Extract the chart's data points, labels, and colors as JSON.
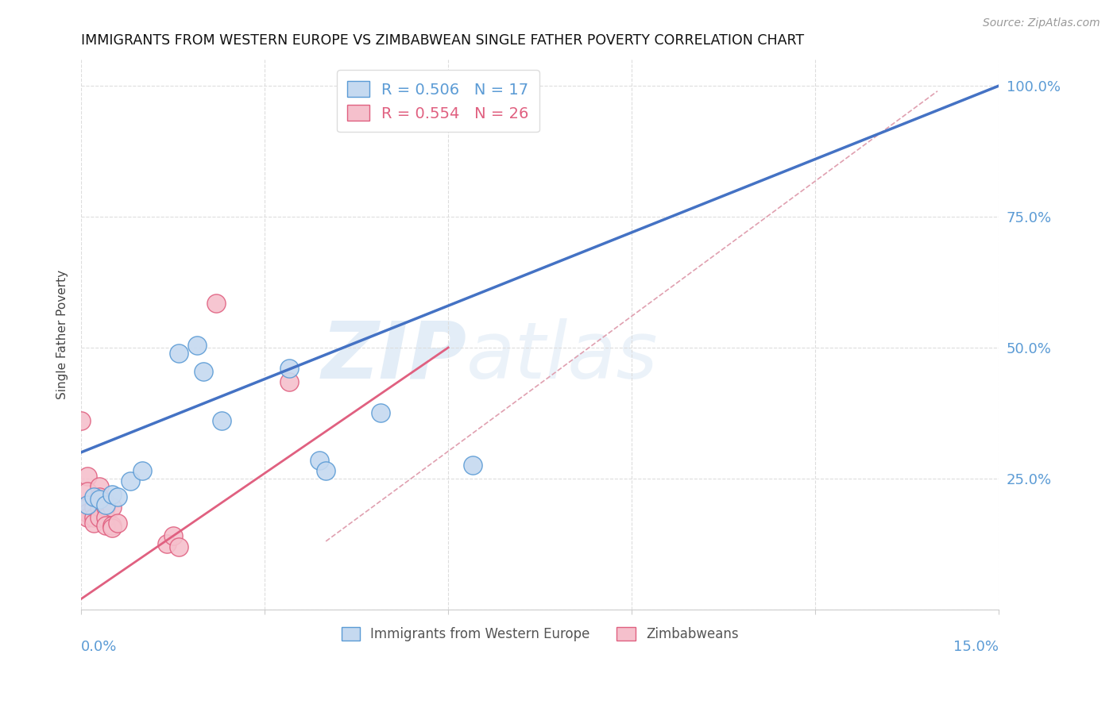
{
  "title": "IMMIGRANTS FROM WESTERN EUROPE VS ZIMBABWEAN SINGLE FATHER POVERTY CORRELATION CHART",
  "source": "Source: ZipAtlas.com",
  "ylabel": "Single Father Poverty",
  "legend_blue_r": "R = 0.506",
  "legend_blue_n": "N = 17",
  "legend_pink_r": "R = 0.554",
  "legend_pink_n": "N = 26",
  "watermark": "ZIPatlas",
  "blue_fill": "#c5d9f0",
  "pink_fill": "#f5c0cc",
  "blue_edge": "#5b9bd5",
  "pink_edge": "#e06080",
  "blue_line_color": "#4472c4",
  "pink_line_color": "#e06080",
  "ref_line_color": "#e0a0b0",
  "blue_scatter": [
    [
      0.001,
      0.2
    ],
    [
      0.002,
      0.215
    ],
    [
      0.003,
      0.21
    ],
    [
      0.004,
      0.2
    ],
    [
      0.005,
      0.22
    ],
    [
      0.006,
      0.215
    ],
    [
      0.008,
      0.245
    ],
    [
      0.01,
      0.265
    ],
    [
      0.016,
      0.49
    ],
    [
      0.019,
      0.505
    ],
    [
      0.02,
      0.455
    ],
    [
      0.023,
      0.36
    ],
    [
      0.034,
      0.46
    ],
    [
      0.039,
      0.285
    ],
    [
      0.04,
      0.265
    ],
    [
      0.049,
      0.375
    ],
    [
      0.064,
      0.275
    ]
  ],
  "pink_scatter": [
    [
      0.0,
      0.36
    ],
    [
      0.001,
      0.255
    ],
    [
      0.001,
      0.225
    ],
    [
      0.001,
      0.195
    ],
    [
      0.001,
      0.185
    ],
    [
      0.001,
      0.175
    ],
    [
      0.002,
      0.195
    ],
    [
      0.002,
      0.175
    ],
    [
      0.002,
      0.165
    ],
    [
      0.003,
      0.235
    ],
    [
      0.003,
      0.215
    ],
    [
      0.003,
      0.195
    ],
    [
      0.003,
      0.175
    ],
    [
      0.004,
      0.205
    ],
    [
      0.004,
      0.195
    ],
    [
      0.004,
      0.175
    ],
    [
      0.004,
      0.16
    ],
    [
      0.005,
      0.195
    ],
    [
      0.005,
      0.16
    ],
    [
      0.005,
      0.155
    ],
    [
      0.006,
      0.165
    ],
    [
      0.014,
      0.125
    ],
    [
      0.015,
      0.14
    ],
    [
      0.016,
      0.12
    ],
    [
      0.022,
      0.585
    ],
    [
      0.034,
      0.435
    ]
  ],
  "blue_line_x": [
    0.0,
    0.15
  ],
  "blue_line_y": [
    0.3,
    1.0
  ],
  "pink_line_x": [
    0.0,
    0.06
  ],
  "pink_line_y": [
    0.02,
    0.5
  ],
  "ref_line_x": [
    0.04,
    0.14
  ],
  "ref_line_y": [
    0.13,
    0.99
  ],
  "x_min": 0.0,
  "x_max": 0.15,
  "y_min": 0.0,
  "y_max": 1.05
}
